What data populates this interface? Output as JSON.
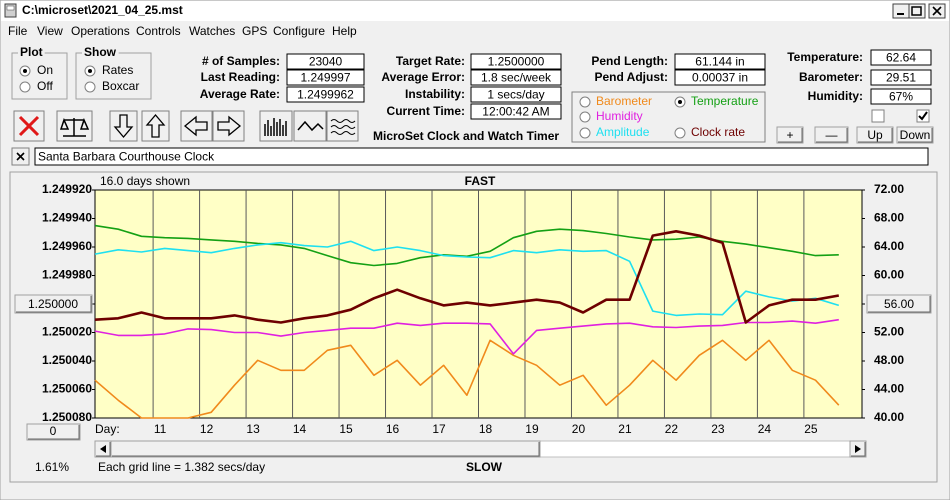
{
  "window": {
    "title": "C:\\microset\\2021_04_25.mst"
  },
  "menu": [
    "File",
    "View",
    "Operations",
    "Controls",
    "Watches",
    "GPS",
    "Configure",
    "Help"
  ],
  "plot": {
    "label": "Plot",
    "options": [
      "On",
      "Off"
    ],
    "selected": 0
  },
  "show": {
    "label": "Show",
    "options": [
      "Rates",
      "Boxcar"
    ],
    "selected": 0
  },
  "stats": [
    {
      "label": "# of Samples:",
      "value": "23040"
    },
    {
      "label": "Last Reading:",
      "value": "1.249997"
    },
    {
      "label": "Average Rate:",
      "value": "1.2499962"
    }
  ],
  "target": [
    {
      "label": "Target Rate:",
      "value": "1.2500000"
    },
    {
      "label": "Average Error:",
      "value": "1.8 sec/week"
    },
    {
      "label": "Instability:",
      "value": "1 secs/day"
    },
    {
      "label": "Current Time:",
      "value": "12:00:42 AM"
    }
  ],
  "app_title": "MicroSet Clock and Watch Timer",
  "pend": [
    {
      "label": "Pend Length:",
      "value": "61.144 in"
    },
    {
      "label": "Pend Adjust:",
      "value": "0.00037 in"
    }
  ],
  "environment": [
    {
      "label": "Temperature:",
      "value": "62.64"
    },
    {
      "label": "Barometer:",
      "value": "29.51"
    },
    {
      "label": "Humidity:",
      "value": "67%"
    }
  ],
  "env_checks": [
    false,
    true
  ],
  "env_buttons": [
    "+",
    "—",
    "Up",
    "Down"
  ],
  "clock_name": "Santa Barbara Courthouse Clock",
  "chart": {
    "type": "line",
    "days_shown": "16.0 days shown",
    "top_label": "FAST",
    "bottom_label": "SLOW",
    "x_label": "Day:",
    "grid_note": "Each grid line = 1.382 secs/day",
    "percent": "1.61%",
    "offset_button": "0",
    "legend_selected": 1,
    "x": [
      9.75,
      10.25,
      10.75,
      11.25,
      11.75,
      12.25,
      12.75,
      13.25,
      13.75,
      14.25,
      14.75,
      15.25,
      15.75,
      16.25,
      16.75,
      17.25,
      17.75,
      18.25,
      18.75,
      19.25,
      19.75,
      20.25,
      20.75,
      21.25,
      21.75,
      22.25,
      22.75,
      23.25,
      23.75,
      24.25,
      24.75,
      25.25,
      25.75
    ],
    "xlim": [
      9.75,
      26.25
    ],
    "xticks": [
      11,
      12,
      13,
      14,
      15,
      16,
      17,
      18,
      19,
      20,
      21,
      22,
      23,
      24,
      25
    ],
    "ylim": [
      1.25008,
      1.24992
    ],
    "yticks": [
      {
        "value": 1.24992,
        "label": "1.249920"
      },
      {
        "value": 1.24994,
        "label": "1.249940"
      },
      {
        "value": 1.24996,
        "label": "1.249960"
      },
      {
        "value": 1.24998,
        "label": "1.249980"
      },
      {
        "value": 1.25,
        "label": "1.250000"
      },
      {
        "value": 1.25002,
        "label": "1.250020"
      },
      {
        "value": 1.25004,
        "label": "1.250040"
      },
      {
        "value": 1.25006,
        "label": "1.250060"
      },
      {
        "value": 1.25008,
        "label": "1.250080"
      }
    ],
    "y2lim": [
      40,
      72
    ],
    "y2ticks": [
      {
        "value": 72,
        "label": "72.00"
      },
      {
        "value": 68,
        "label": "68.00"
      },
      {
        "value": 64,
        "label": "64.00"
      },
      {
        "value": 60,
        "label": "60.00"
      },
      {
        "value": 56,
        "label": "56.00"
      },
      {
        "value": 52,
        "label": "52.00"
      },
      {
        "value": 48,
        "label": "48.00"
      },
      {
        "value": 44,
        "label": "44.00"
      },
      {
        "value": 40,
        "label": "40.00"
      }
    ],
    "series": [
      {
        "name": "Barometer",
        "color": "#f08a1c",
        "axis": "y2",
        "values": [
          45.3,
          42.5,
          40.0,
          40.0,
          40.0,
          40.8,
          44.6,
          48.1,
          46.7,
          46.7,
          49.5,
          50.2,
          46.0,
          48.1,
          44.6,
          47.4,
          43.2,
          50.9,
          48.8,
          47.4,
          44.6,
          46.0,
          41.8,
          44.6,
          48.1,
          45.3,
          48.8,
          50.9,
          48.1,
          50.9,
          46.7,
          45.3,
          41.8
        ]
      },
      {
        "name": "Temperature",
        "color": "#14a014",
        "axis": "y2",
        "values": [
          67.0,
          66.5,
          65.5,
          65.3,
          65.2,
          65.0,
          64.8,
          64.5,
          64.3,
          63.8,
          62.8,
          61.8,
          61.4,
          61.7,
          62.5,
          62.9,
          62.7,
          63.4,
          65.3,
          66.2,
          66.5,
          66.3,
          65.9,
          65.4,
          65.0,
          65.1,
          65.4,
          64.8,
          64.4,
          63.9,
          63.4,
          62.8,
          62.9
        ]
      },
      {
        "name": "Humidity",
        "color": "#e020e0",
        "axis": "y2",
        "values": [
          52.2,
          51.6,
          51.6,
          51.8,
          52.5,
          52.4,
          52.0,
          52.0,
          51.5,
          52.0,
          52.3,
          52.6,
          52.6,
          53.3,
          53.0,
          53.3,
          53.3,
          53.2,
          49.0,
          52.3,
          52.6,
          52.9,
          53.2,
          53.3,
          52.8,
          52.7,
          52.9,
          53.0,
          53.4,
          53.4,
          53.6,
          53.3,
          53.8
        ]
      },
      {
        "name": "Amplitude",
        "color": "#1ee0f0",
        "axis": "y2",
        "values": [
          63.0,
          63.6,
          63.3,
          63.8,
          63.5,
          63.2,
          63.8,
          64.3,
          64.6,
          64.2,
          64.0,
          64.8,
          63.5,
          64.0,
          63.5,
          62.8,
          62.6,
          62.5,
          63.5,
          63.2,
          63.6,
          63.4,
          63.5,
          62.0,
          55.0,
          54.4,
          54.6,
          54.5,
          57.8,
          57.0,
          56.4,
          56.8,
          55.8
        ]
      },
      {
        "name": "Clock rate",
        "color": "#6e0000",
        "axis": "y",
        "values": [
          1.250011,
          1.25001,
          1.250006,
          1.25001,
          1.25001,
          1.25001,
          1.250008,
          1.250011,
          1.250013,
          1.25001,
          1.250008,
          1.250004,
          1.249996,
          1.24999,
          1.249996,
          1.250001,
          1.249999,
          1.250001,
          1.249999,
          1.249997,
          1.249999,
          1.250006,
          1.249997,
          1.249997,
          1.249952,
          1.249949,
          1.249952,
          1.249957,
          1.250013,
          1.250001,
          1.249997,
          1.249997,
          1.249994
        ]
      }
    ]
  }
}
